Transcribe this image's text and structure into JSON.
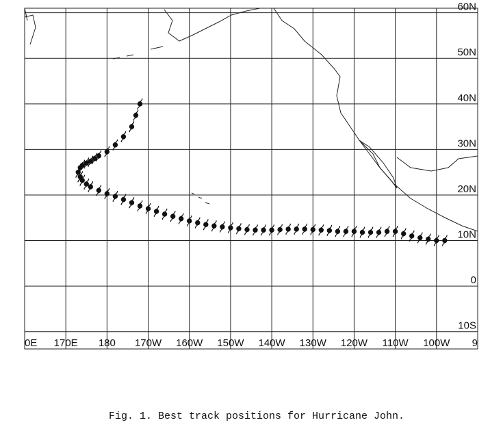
{
  "chart_data": {
    "type": "track_map",
    "caption": "Fig. 1.  Best track positions for Hurricane John.",
    "xlim": [
      160,
      270
    ],
    "ylim": [
      -13.8,
      61
    ],
    "xticks": [
      {
        "value": 160,
        "label": "0E"
      },
      {
        "value": 170,
        "label": "170E"
      },
      {
        "value": 180,
        "label": "180"
      },
      {
        "value": 190,
        "label": "170W"
      },
      {
        "value": 200,
        "label": "160W"
      },
      {
        "value": 210,
        "label": "150W"
      },
      {
        "value": 220,
        "label": "140W"
      },
      {
        "value": 230,
        "label": "130W"
      },
      {
        "value": 240,
        "label": "120W"
      },
      {
        "value": 250,
        "label": "110W"
      },
      {
        "value": 260,
        "label": "100W"
      },
      {
        "value": 270,
        "label": "9"
      }
    ],
    "yticks": [
      {
        "value": 60,
        "label": "60N"
      },
      {
        "value": 50,
        "label": "50N"
      },
      {
        "value": 40,
        "label": "40N"
      },
      {
        "value": 30,
        "label": "30N"
      },
      {
        "value": 20,
        "label": "20N"
      },
      {
        "value": 10,
        "label": "10N"
      },
      0,
      {
        "value": -10,
        "label": "10S"
      }
    ],
    "track": {
      "lon": [
        262,
        260,
        258,
        256,
        254,
        252,
        250,
        248,
        246,
        244,
        242,
        240,
        238,
        236,
        234,
        232,
        230,
        228,
        226,
        224,
        222,
        220,
        218,
        216,
        214,
        212,
        210,
        208,
        206,
        204,
        202,
        200,
        198,
        196,
        194,
        192,
        190,
        188,
        186,
        184,
        182,
        180,
        178,
        176,
        175,
        174,
        173.5,
        173,
        173.5,
        174,
        175,
        176,
        177,
        178,
        180,
        182,
        184,
        186,
        187,
        188
      ],
      "lat": [
        10,
        10,
        10.3,
        10.6,
        11,
        11.5,
        12,
        12,
        11.8,
        11.8,
        11.8,
        12,
        12,
        12,
        12.2,
        12.3,
        12.4,
        12.5,
        12.5,
        12.5,
        12.4,
        12.3,
        12.3,
        12.3,
        12.4,
        12.6,
        12.8,
        13,
        13.2,
        13.5,
        13.9,
        14.3,
        14.8,
        15.3,
        15.8,
        16.4,
        17,
        17.6,
        18.3,
        19,
        19.7,
        20.3,
        21,
        21.8,
        22.4,
        23.2,
        24,
        25,
        26,
        26.5,
        27,
        27.4,
        28,
        28.6,
        29.5,
        31,
        32.8,
        35,
        37.5,
        40
      ]
    },
    "grid": true
  }
}
